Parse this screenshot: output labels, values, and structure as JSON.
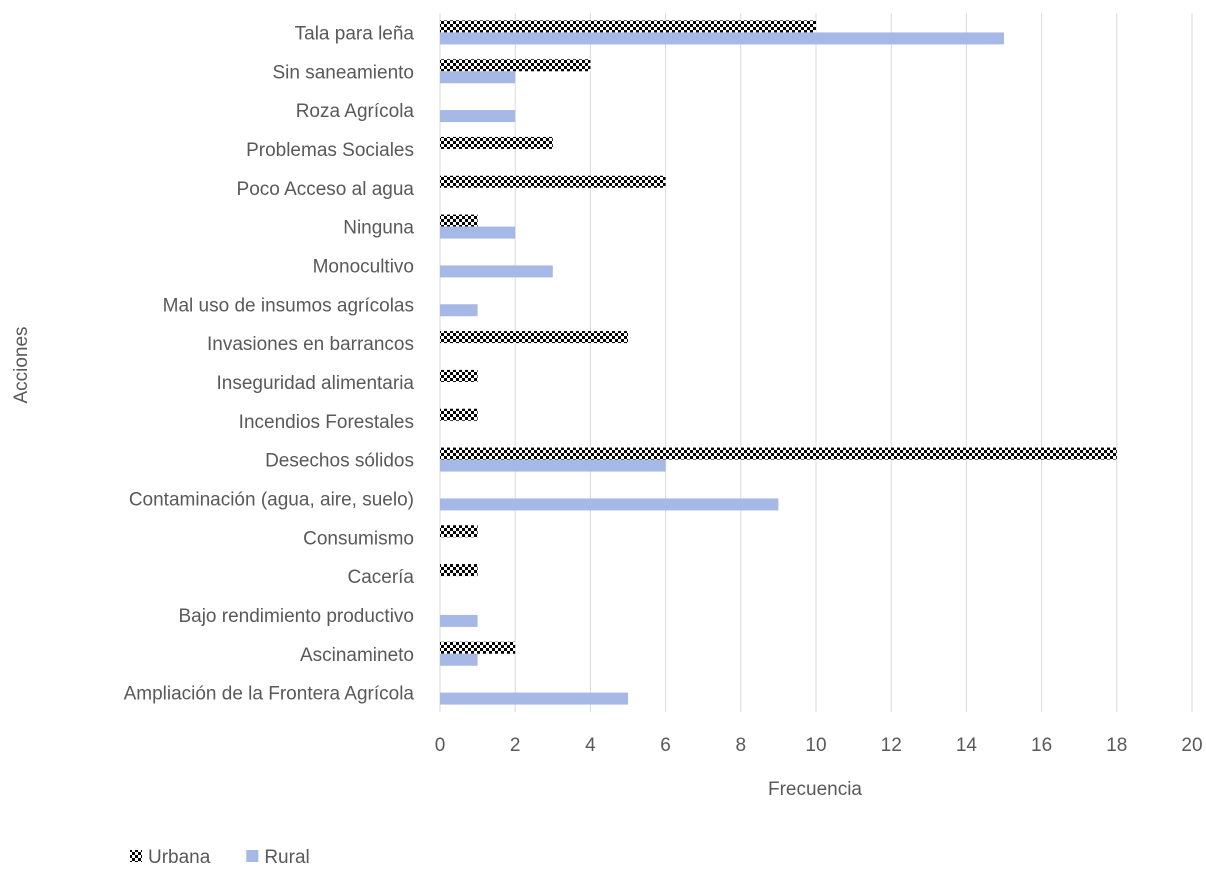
{
  "chart_data": {
    "type": "bar",
    "orientation": "horizontal",
    "x_label": "Frecuencia",
    "y_label": "Acciones",
    "categories": [
      "Tala para leña",
      "Sin saneamiento",
      "Roza Agrícola",
      "Problemas Sociales",
      "Poco Acceso al agua",
      "Ninguna",
      "Monocultivo",
      "Mal uso de insumos agrícolas",
      "Invasiones en barrancos",
      "Inseguridad alimentaria",
      "Incendios Forestales",
      "Desechos sólidos",
      "Contaminación (agua, aire, suelo)",
      "Consumismo",
      "Cacería",
      "Bajo rendimiento productivo",
      "Ascinamineto",
      "Ampliación de la Frontera Agrícola"
    ],
    "series": [
      {
        "name": "Urbana",
        "color": "#000000",
        "pattern": "checker",
        "values": [
          10,
          4,
          0,
          3,
          6,
          1,
          0,
          0,
          5,
          1,
          1,
          18,
          0,
          1,
          1,
          0,
          2,
          0
        ]
      },
      {
        "name": "Rural",
        "color": "#a6b9e6",
        "values": [
          15,
          2,
          2,
          0,
          0,
          2,
          3,
          1,
          0,
          0,
          0,
          6,
          9,
          0,
          0,
          1,
          1,
          5
        ]
      }
    ],
    "xlim": [
      0,
      20
    ],
    "xticks": [
      0,
      2,
      4,
      6,
      8,
      10,
      12,
      14,
      16,
      18,
      20
    ],
    "grid": true,
    "legend": "bottom-left"
  }
}
